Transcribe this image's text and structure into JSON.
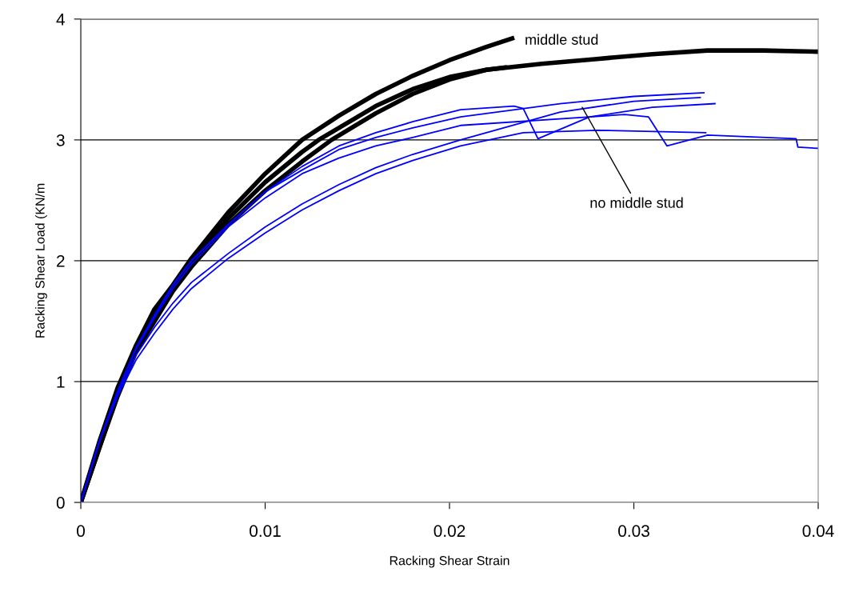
{
  "chart_data": {
    "type": "line",
    "xlabel": "Racking Shear Strain",
    "ylabel": "Racking Shear Load (KN/m",
    "xlim": [
      0,
      0.04
    ],
    "ylim": [
      0,
      4
    ],
    "xticks": [
      0,
      0.01,
      0.02,
      0.03,
      0.04
    ],
    "yticks": [
      0,
      1,
      2,
      3,
      4
    ],
    "grid": "y",
    "marker": "none",
    "line_style": "solid",
    "series": [
      {
        "color": "#000000",
        "x": [
          0,
          0.001,
          0.002,
          0.003,
          0.004,
          0.005,
          0.006,
          0.008,
          0.01,
          0.012,
          0.014,
          0.016,
          0.018,
          0.02,
          0.022,
          0.0234
        ],
        "values": [
          0,
          0.5,
          0.95,
          1.3,
          1.6,
          1.8,
          2.02,
          2.4,
          2.72,
          3.0,
          3.2,
          3.38,
          3.53,
          3.66,
          3.77,
          3.84
        ]
      },
      {
        "color": "#000000",
        "x": [
          0,
          0.001,
          0.002,
          0.003,
          0.004,
          0.005,
          0.006,
          0.008,
          0.01,
          0.012,
          0.0129,
          0.016,
          0.018,
          0.02,
          0.022,
          0.023
        ],
        "values": [
          0,
          0.45,
          0.9,
          1.28,
          1.55,
          1.78,
          1.98,
          2.35,
          2.65,
          2.9,
          3.0,
          3.28,
          3.42,
          3.52,
          3.58,
          3.6
        ]
      },
      {
        "color": "#000000",
        "x": [
          0,
          0.001,
          0.002,
          0.003,
          0.004,
          0.005,
          0.006,
          0.008,
          0.01,
          0.012,
          0.0136,
          0.016,
          0.018,
          0.02,
          0.022,
          0.025,
          0.028,
          0.031,
          0.034,
          0.037,
          0.04
        ],
        "values": [
          0,
          0.45,
          0.88,
          1.25,
          1.5,
          1.75,
          1.95,
          2.3,
          2.58,
          2.82,
          3.0,
          3.22,
          3.38,
          3.5,
          3.58,
          3.63,
          3.67,
          3.71,
          3.74,
          3.74,
          3.73
        ]
      },
      {
        "color": "#0000ff",
        "x": [
          0,
          0.001,
          0.002,
          0.003,
          0.004,
          0.005,
          0.006,
          0.008,
          0.01,
          0.012,
          0.014,
          0.016,
          0.018,
          0.0206,
          0.0235,
          0.024,
          0.0248,
          0.0276,
          0.031,
          0.0344
        ],
        "values": [
          0,
          0.5,
          0.92,
          1.28,
          1.55,
          1.8,
          2.0,
          2.3,
          2.57,
          2.78,
          2.95,
          3.06,
          3.15,
          3.25,
          3.28,
          3.26,
          3.01,
          3.19,
          3.27,
          3.3
        ]
      },
      {
        "color": "#0000ff",
        "x": [
          0,
          0.001,
          0.002,
          0.003,
          0.004,
          0.005,
          0.006,
          0.008,
          0.01,
          0.012,
          0.014,
          0.016,
          0.018,
          0.0206,
          0.026,
          0.03,
          0.0338
        ],
        "values": [
          0,
          0.5,
          0.92,
          1.28,
          1.55,
          1.8,
          2.0,
          2.3,
          2.57,
          2.75,
          2.92,
          3.02,
          3.1,
          3.19,
          3.3,
          3.36,
          3.39
        ]
      },
      {
        "color": "#0000ff",
        "x": [
          0,
          0.001,
          0.002,
          0.003,
          0.004,
          0.005,
          0.006,
          0.008,
          0.01,
          0.012,
          0.014,
          0.016,
          0.018,
          0.0206,
          0.0295,
          0.0308,
          0.0318,
          0.034,
          0.0388,
          0.0389,
          0.04
        ],
        "values": [
          0,
          0.5,
          0.92,
          1.27,
          1.53,
          1.77,
          1.97,
          2.28,
          2.52,
          2.72,
          2.85,
          2.95,
          3.02,
          3.12,
          3.21,
          3.19,
          2.95,
          3.04,
          3.01,
          2.94,
          2.93
        ]
      },
      {
        "color": "#0000ff",
        "x": [
          0,
          0.001,
          0.002,
          0.003,
          0.004,
          0.005,
          0.006,
          0.008,
          0.01,
          0.012,
          0.014,
          0.016,
          0.018,
          0.0206,
          0.026,
          0.03,
          0.0336
        ],
        "values": [
          0,
          0.5,
          0.9,
          1.22,
          1.45,
          1.65,
          1.82,
          2.06,
          2.28,
          2.47,
          2.63,
          2.77,
          2.88,
          3.0,
          3.23,
          3.32,
          3.35
        ]
      },
      {
        "color": "#0000ff",
        "x": [
          0,
          0.001,
          0.002,
          0.003,
          0.004,
          0.005,
          0.006,
          0.008,
          0.01,
          0.012,
          0.014,
          0.016,
          0.018,
          0.0206,
          0.024,
          0.028,
          0.0339
        ],
        "values": [
          0,
          0.5,
          0.88,
          1.18,
          1.4,
          1.6,
          1.77,
          2.02,
          2.23,
          2.42,
          2.58,
          2.72,
          2.83,
          2.95,
          3.06,
          3.08,
          3.06
        ]
      }
    ],
    "annotations": [
      "middle stud",
      {
        "text": "no middle stud",
        "x": 0.0272,
        "y": 3.27
      }
    ]
  }
}
